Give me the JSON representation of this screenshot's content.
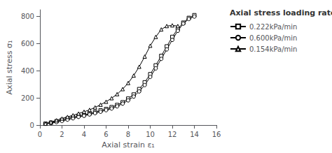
{
  "chart_data": {
    "type": "line",
    "xlabel": "Axial strain ε₁",
    "ylabel": "Axial stress σ₁",
    "legend_title": "Axial stress loading rate",
    "legend": "right",
    "grid": false,
    "color": "#000000",
    "xlim": [
      0,
      16
    ],
    "ylim": [
      0,
      850
    ],
    "xticks": [
      0,
      2,
      4,
      6,
      8,
      10,
      12,
      14,
      16
    ],
    "yticks": [
      0,
      200,
      400,
      600,
      800
    ],
    "series": [
      {
        "name": "0.222kPa/min",
        "marker": "square",
        "x": [
          0.5,
          1.0,
          1.5,
          2.0,
          2.5,
          3.0,
          3.5,
          4.0,
          4.5,
          5.0,
          5.5,
          6.0,
          6.5,
          7.0,
          7.5,
          8.0,
          8.5,
          9.0,
          9.5,
          10.0,
          10.5,
          11.0,
          11.5,
          12.0,
          12.5,
          13.0,
          13.5,
          14.0
        ],
        "values": [
          10,
          18,
          28,
          38,
          48,
          58,
          68,
          75,
          85,
          95,
          108,
          118,
          132,
          148,
          168,
          195,
          225,
          265,
          315,
          375,
          440,
          510,
          580,
          650,
          710,
          755,
          790,
          810
        ]
      },
      {
        "name": "0.600kPa/min",
        "marker": "circle",
        "x": [
          0.5,
          1.0,
          1.5,
          2.0,
          2.5,
          3.0,
          3.5,
          4.0,
          4.5,
          5.0,
          5.5,
          6.0,
          6.5,
          7.0,
          7.5,
          8.0,
          8.5,
          9.0,
          9.5,
          10.0,
          10.5,
          11.0,
          11.5,
          12.0,
          12.5,
          13.0,
          13.5,
          14.0
        ],
        "values": [
          10,
          15,
          22,
          30,
          40,
          50,
          60,
          68,
          78,
          88,
          98,
          110,
          122,
          138,
          158,
          182,
          210,
          248,
          295,
          355,
          418,
          488,
          558,
          628,
          695,
          748,
          782,
          800
        ]
      },
      {
        "name": "0.154kPa/min",
        "marker": "triangle",
        "x": [
          0.5,
          1.0,
          1.5,
          2.0,
          2.5,
          3.0,
          3.5,
          4.0,
          4.5,
          5.0,
          5.5,
          6.0,
          6.5,
          7.0,
          7.5,
          8.0,
          8.5,
          9.0,
          9.5,
          10.0,
          10.5,
          11.0,
          11.5,
          12.0,
          12.5
        ],
        "values": [
          10,
          22,
          35,
          48,
          60,
          72,
          85,
          98,
          112,
          130,
          150,
          172,
          198,
          228,
          265,
          310,
          365,
          430,
          505,
          585,
          650,
          705,
          730,
          735,
          730
        ]
      }
    ]
  }
}
